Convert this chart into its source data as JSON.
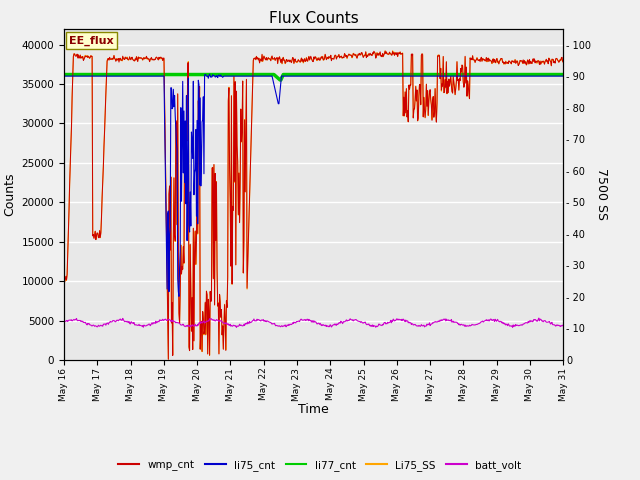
{
  "title": "Flux Counts",
  "xlabel": "Time",
  "ylabel_left": "Counts",
  "ylabel_right": "7500 SS",
  "left_ylim": [
    0,
    42000
  ],
  "right_ylim": [
    0,
    105
  ],
  "background_color": "#f0f0f0",
  "plot_bg_light": "#e8e8e8",
  "plot_bg_dark": "#d8d8d8",
  "annotation_text": "EE_flux",
  "annotation_color": "#8b0000",
  "annotation_bg": "#ffffcc",
  "annotation_border": "#999900",
  "li77_value": 36000,
  "li77_color": "#00cc00",
  "wmp_color": "#cc0000",
  "li75_color": "#0000cc",
  "li75ss_color": "#ffa500",
  "batt_color": "#cc00cc",
  "legend_labels": [
    "wmp_cnt",
    "li75_cnt",
    "li77_cnt",
    "Li75_SS",
    "batt_volt"
  ],
  "legend_colors": [
    "#cc0000",
    "#0000cc",
    "#00cc00",
    "#ffa500",
    "#cc00cc"
  ]
}
